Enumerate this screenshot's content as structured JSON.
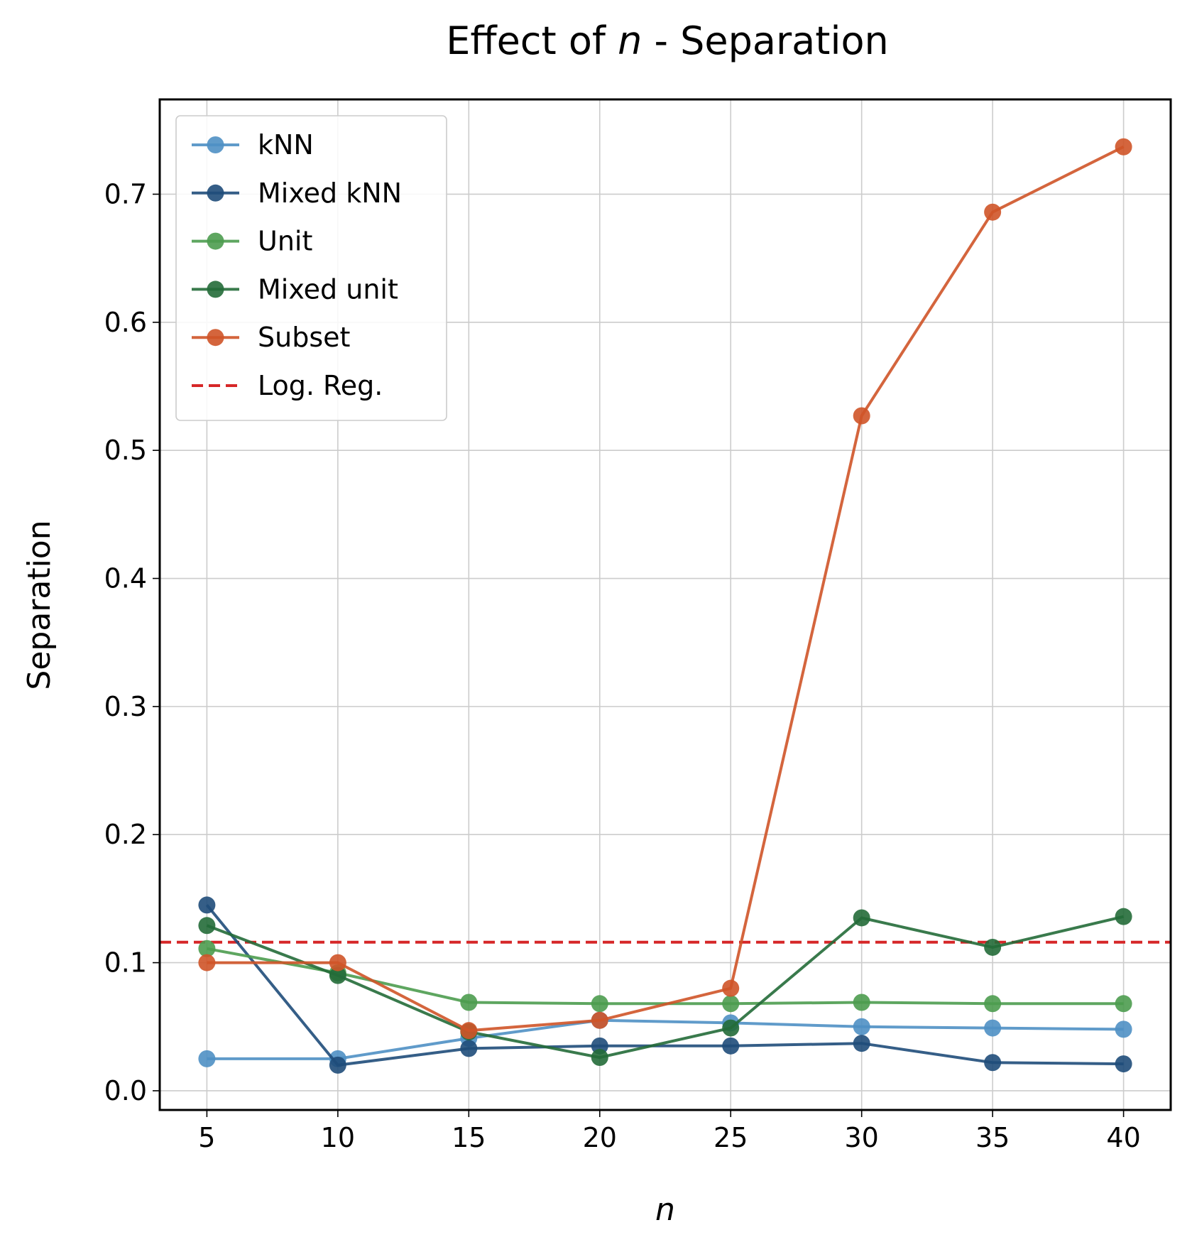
{
  "chart_data": {
    "type": "line",
    "title": "Effect of",
    "title_variable": "n",
    "title_suffix": " - Separation",
    "xlabel": "n",
    "ylabel": "Separation",
    "x": [
      5,
      10,
      15,
      20,
      25,
      30,
      35,
      40
    ],
    "xticks": [
      "5",
      "10",
      "15",
      "20",
      "25",
      "30",
      "35",
      "40"
    ],
    "yticks": [
      "0.0",
      "0.1",
      "0.2",
      "0.3",
      "0.4",
      "0.5",
      "0.6",
      "0.7"
    ],
    "xlim": [
      3.2,
      41.8
    ],
    "ylim": [
      -0.015,
      0.774
    ],
    "grid": true,
    "legend_position": "upper-left",
    "series": [
      {
        "name": "kNN",
        "color": "#4f90c4",
        "style": "line-marker",
        "values": [
          0.025,
          0.025,
          0.041,
          0.055,
          0.053,
          0.05,
          0.049,
          0.048
        ]
      },
      {
        "name": "Mixed kNN",
        "color": "#1f4c7a",
        "style": "line-marker",
        "values": [
          0.145,
          0.02,
          0.033,
          0.035,
          0.035,
          0.037,
          0.022,
          0.021
        ]
      },
      {
        "name": "Unit",
        "color": "#4c9c4f",
        "style": "line-marker",
        "values": [
          0.111,
          0.092,
          0.069,
          0.068,
          0.068,
          0.069,
          0.068,
          0.068
        ]
      },
      {
        "name": "Mixed unit",
        "color": "#236b38",
        "style": "line-marker",
        "values": [
          0.129,
          0.09,
          0.046,
          0.026,
          0.049,
          0.135,
          0.112,
          0.136
        ]
      },
      {
        "name": "Subset",
        "color": "#cf5428",
        "style": "line-marker",
        "values": [
          0.1,
          0.1,
          0.047,
          0.055,
          0.08,
          0.527,
          0.686,
          0.737
        ]
      },
      {
        "name": "Log. Reg.",
        "color": "#d62728",
        "style": "hline-dashed",
        "value": 0.116
      }
    ]
  }
}
